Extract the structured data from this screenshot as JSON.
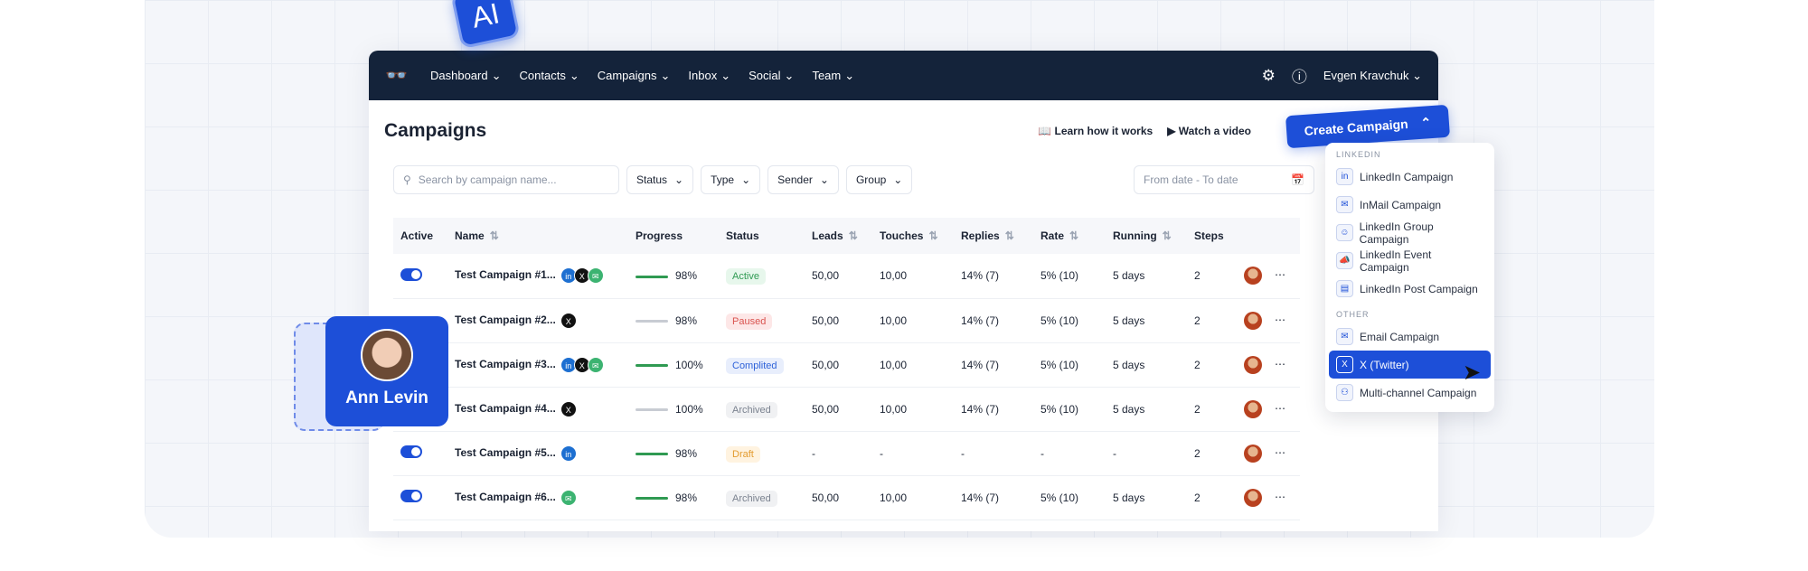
{
  "nav": {
    "items": [
      "Dashboard",
      "Contacts",
      "Campaigns",
      "Inbox",
      "Social",
      "Team"
    ],
    "user": "Evgen Kravchuk"
  },
  "page": {
    "title": "Campaigns",
    "learn": "Learn how it works",
    "video": "Watch a video",
    "create": "Create Campaign"
  },
  "filters": {
    "search_placeholder": "Search by campaign name...",
    "status": "Status",
    "type": "Type",
    "sender": "Sender",
    "group": "Group",
    "date_placeholder": "From date - To date"
  },
  "table": {
    "headers": [
      "Active",
      "Name",
      "Progress",
      "Status",
      "Leads",
      "Touches",
      "Replies",
      "Rate",
      "Running",
      "Steps"
    ],
    "rows": [
      {
        "active": true,
        "name": "Test Campaign #1...",
        "channels": [
          "linkedin",
          "x",
          "email"
        ],
        "progress": "98%",
        "status": "Active",
        "leads": "50,00",
        "touches": "10,00",
        "replies": "14% (7)",
        "rate": "5% (10)",
        "running": "5 days",
        "steps": "2"
      },
      {
        "active": false,
        "name": "Test Campaign #2...",
        "channels": [
          "x"
        ],
        "progress": "98%",
        "status": "Paused",
        "leads": "50,00",
        "touches": "10,00",
        "replies": "14% (7)",
        "rate": "5% (10)",
        "running": "5 days",
        "steps": "2"
      },
      {
        "active": false,
        "name": "Test Campaign #3...",
        "channels": [
          "linkedin",
          "x",
          "email"
        ],
        "progress": "100%",
        "status": "Complited",
        "leads": "50,00",
        "touches": "10,00",
        "replies": "14% (7)",
        "rate": "5% (10)",
        "running": "5 days",
        "steps": "2"
      },
      {
        "active": false,
        "name": "Test Campaign #4...",
        "channels": [
          "x"
        ],
        "progress": "100%",
        "status": "Archived",
        "leads": "50,00",
        "touches": "10,00",
        "replies": "14% (7)",
        "rate": "5% (10)",
        "running": "5 days",
        "steps": "2"
      },
      {
        "active": true,
        "name": "Test Campaign #5...",
        "channels": [
          "linkedin"
        ],
        "progress": "98%",
        "status": "Draft",
        "leads": "-",
        "touches": "-",
        "replies": "-",
        "rate": "-",
        "running": "-",
        "steps": "2"
      },
      {
        "active": true,
        "name": "Test Campaign #6...",
        "channels": [
          "email"
        ],
        "progress": "98%",
        "status": "Archived",
        "leads": "50,00",
        "touches": "10,00",
        "replies": "14% (7)",
        "rate": "5% (10)",
        "running": "5 days",
        "steps": "2"
      }
    ]
  },
  "menu": {
    "linkedin_label": "LINKEDIN",
    "other_label": "OTHER",
    "items": [
      "LinkedIn Campaign",
      "InMail Campaign",
      "LinkedIn Group Campaign",
      "LinkedIn Event Campaign",
      "LinkedIn Post Campaign",
      "Email Campaign",
      "X (Twitter)",
      "Multi-channel Campaign"
    ],
    "selected": "X (Twitter)"
  },
  "badge": {
    "ai": "AI"
  },
  "card": {
    "name": "Ann Levin"
  },
  "colors": {
    "primary": "#1d4fd8",
    "nav": "#14233a"
  }
}
